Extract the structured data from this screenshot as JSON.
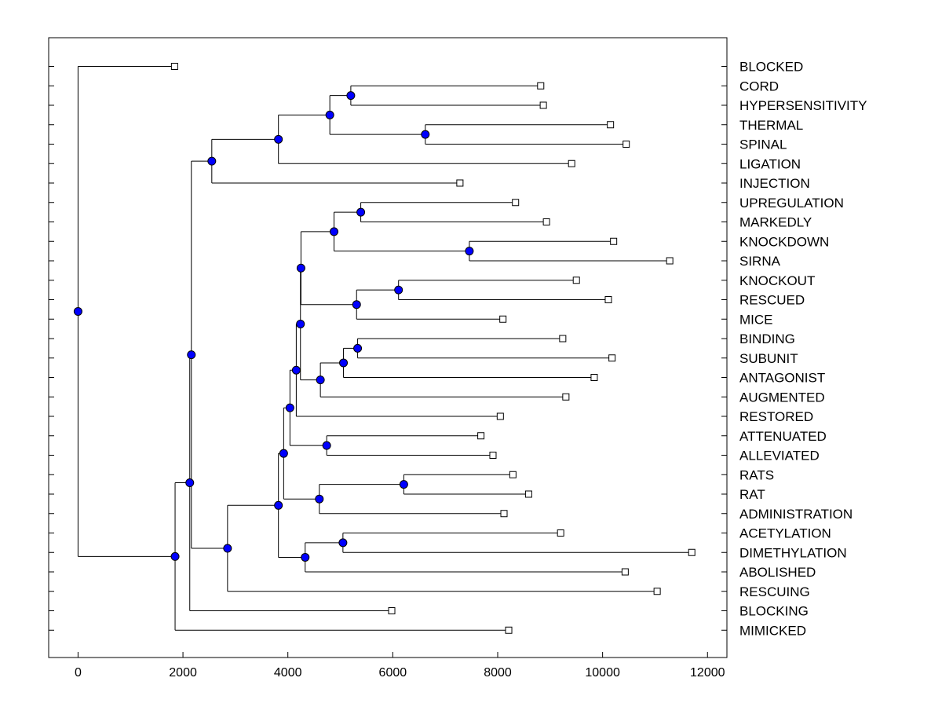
{
  "chart_data": {
    "type": "dendrogram",
    "orientation": "horizontal",
    "xlim": [
      -560,
      12370
    ],
    "xticks": [
      0,
      2000,
      4000,
      6000,
      8000,
      10000,
      12000
    ],
    "xtick_labels": [
      "0",
      "2000",
      "4000",
      "6000",
      "8000",
      "10000",
      "12000"
    ],
    "leaves": [
      {
        "label": "BLOCKED",
        "value": 1840
      },
      {
        "label": "CORD",
        "value": 8820
      },
      {
        "label": "HYPERSENSITIVITY",
        "value": 8870
      },
      {
        "label": "THERMAL",
        "value": 10150
      },
      {
        "label": "SPINAL",
        "value": 10450
      },
      {
        "label": "LIGATION",
        "value": 9410
      },
      {
        "label": "INJECTION",
        "value": 7280
      },
      {
        "label": "UPREGULATION",
        "value": 8340
      },
      {
        "label": "MARKEDLY",
        "value": 8930
      },
      {
        "label": "KNOCKDOWN",
        "value": 10210
      },
      {
        "label": "SIRNA",
        "value": 11280
      },
      {
        "label": "KNOCKOUT",
        "value": 9500
      },
      {
        "label": "RESCUED",
        "value": 10110
      },
      {
        "label": "MICE",
        "value": 8100
      },
      {
        "label": "BINDING",
        "value": 9240
      },
      {
        "label": "SUBUNIT",
        "value": 10180
      },
      {
        "label": "ANTAGONIST",
        "value": 9840
      },
      {
        "label": "AUGMENTED",
        "value": 9300
      },
      {
        "label": "RESTORED",
        "value": 8050
      },
      {
        "label": "ATTENUATED",
        "value": 7680
      },
      {
        "label": "ALLEVIATED",
        "value": 7910
      },
      {
        "label": "RATS",
        "value": 8290
      },
      {
        "label": "RAT",
        "value": 8590
      },
      {
        "label": "ADMINISTRATION",
        "value": 8120
      },
      {
        "label": "ACETYLATION",
        "value": 9200
      },
      {
        "label": "DIMETHYLATION",
        "value": 11700
      },
      {
        "label": "ABOLISHED",
        "value": 10430
      },
      {
        "label": "RESCUING",
        "value": 11040
      },
      {
        "label": "BLOCKING",
        "value": 5980
      },
      {
        "label": "MIMICKED",
        "value": 8210
      }
    ],
    "merges": [
      {
        "id": "M1",
        "value": 5200,
        "children": [
          "L1",
          "L2"
        ]
      },
      {
        "id": "M2",
        "value": 6620,
        "children": [
          "L3",
          "L4"
        ]
      },
      {
        "id": "M3",
        "value": 4800,
        "children": [
          "M1",
          "M2"
        ]
      },
      {
        "id": "M4",
        "value": 3820,
        "children": [
          "M3",
          "L5"
        ]
      },
      {
        "id": "M5",
        "value": 2550,
        "children": [
          "M4",
          "L6"
        ]
      },
      {
        "id": "M6",
        "value": 5390,
        "children": [
          "L7",
          "L8"
        ]
      },
      {
        "id": "M7",
        "value": 7460,
        "children": [
          "L9",
          "L10"
        ]
      },
      {
        "id": "M8",
        "value": 4880,
        "children": [
          "M6",
          "M7"
        ]
      },
      {
        "id": "M9",
        "value": 6110,
        "children": [
          "L11",
          "L12"
        ]
      },
      {
        "id": "M10",
        "value": 5310,
        "children": [
          "M9",
          "L13"
        ]
      },
      {
        "id": "M11",
        "value": 4250,
        "children": [
          "M8",
          "M10"
        ]
      },
      {
        "id": "M12",
        "value": 5330,
        "children": [
          "L14",
          "L15"
        ]
      },
      {
        "id": "M13",
        "value": 5060,
        "children": [
          "M12",
          "L16"
        ]
      },
      {
        "id": "M14",
        "value": 4620,
        "children": [
          "M13",
          "L17"
        ]
      },
      {
        "id": "M15",
        "value": 4240,
        "children": [
          "M11",
          "M14"
        ]
      },
      {
        "id": "M16",
        "value": 4160,
        "children": [
          "M15",
          "L18"
        ]
      },
      {
        "id": "M17",
        "value": 4740,
        "children": [
          "L19",
          "L20"
        ]
      },
      {
        "id": "M18",
        "value": 4040,
        "children": [
          "M16",
          "M17"
        ]
      },
      {
        "id": "M19",
        "value": 6210,
        "children": [
          "L21",
          "L22"
        ]
      },
      {
        "id": "M20",
        "value": 4600,
        "children": [
          "M19",
          "L23"
        ]
      },
      {
        "id": "M21",
        "value": 3920,
        "children": [
          "M18",
          "M20"
        ]
      },
      {
        "id": "M22",
        "value": 5050,
        "children": [
          "L24",
          "L25"
        ]
      },
      {
        "id": "M23",
        "value": 4330,
        "children": [
          "M22",
          "L26"
        ]
      },
      {
        "id": "M24",
        "value": 3820,
        "children": [
          "M21",
          "M23"
        ]
      },
      {
        "id": "M25",
        "value": 2850,
        "children": [
          "M24",
          "L27"
        ]
      },
      {
        "id": "M26",
        "value": 2160,
        "children": [
          "M5",
          "M25"
        ]
      },
      {
        "id": "M27",
        "value": 2130,
        "children": [
          "M26",
          "L28"
        ]
      },
      {
        "id": "M28",
        "value": 1850,
        "children": [
          "M27",
          "L29"
        ]
      },
      {
        "id": "M29",
        "value": 0,
        "children": [
          "L0",
          "M28"
        ]
      }
    ],
    "title": "",
    "xlabel": "",
    "ylabel": "",
    "grid": false,
    "legend": "none"
  },
  "colors": {
    "node_fill": "#0000ff",
    "leaf_fill": "#ffffff",
    "line": "#000000",
    "background": "#ffffff"
  }
}
